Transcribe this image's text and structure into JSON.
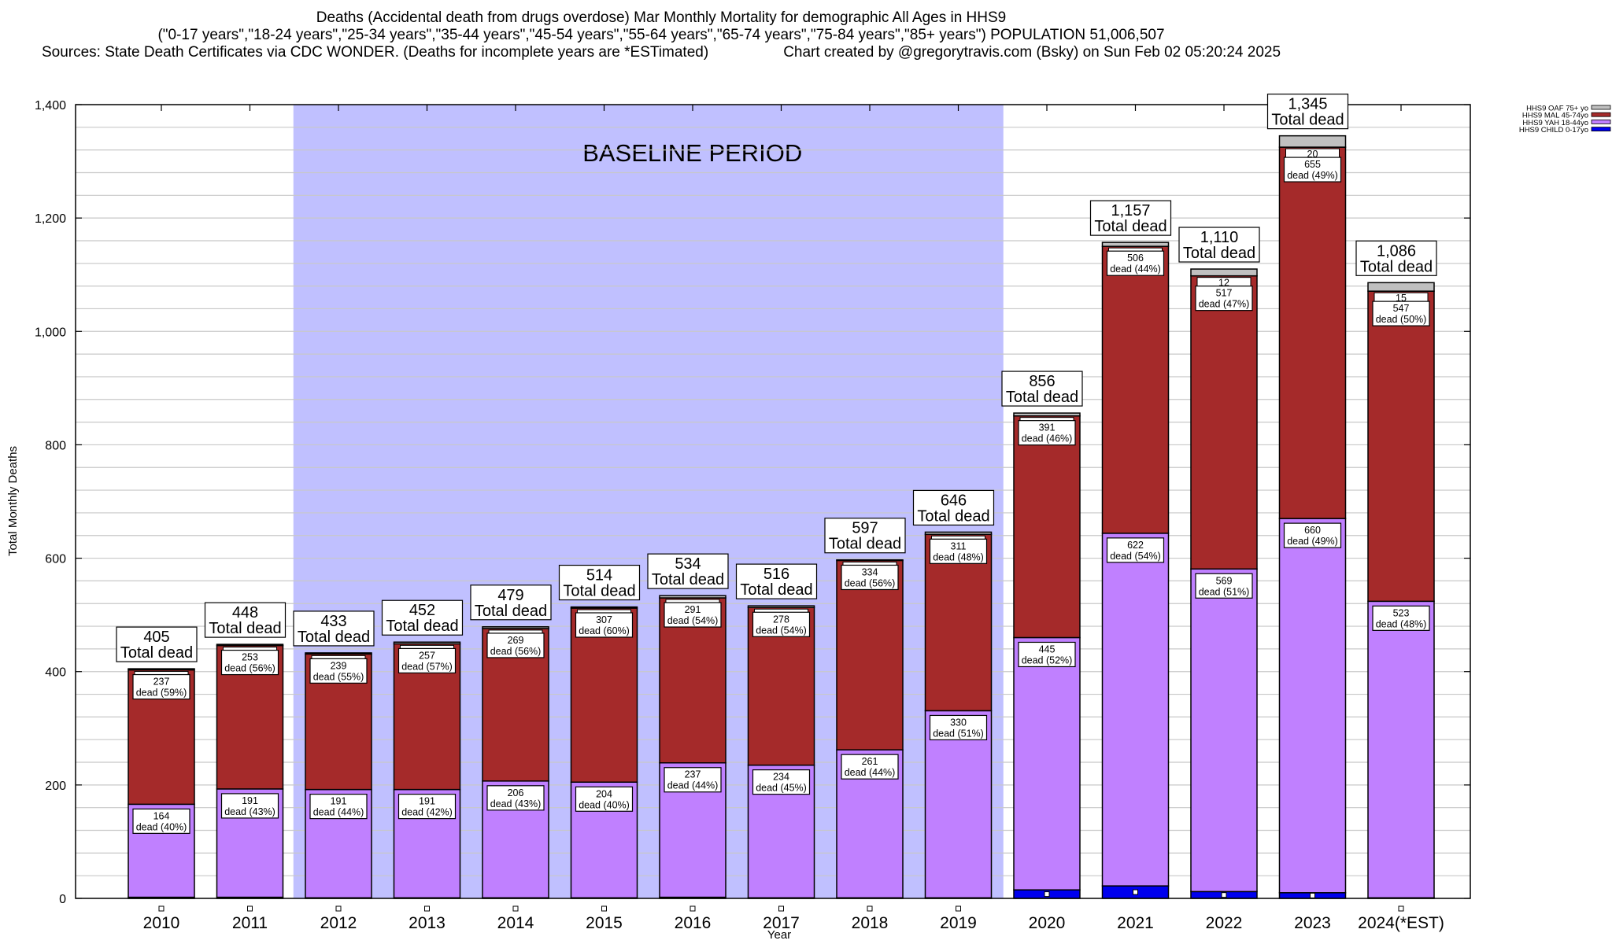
{
  "chart_data": {
    "type": "bar",
    "stacked": true,
    "title": "Deaths (Accidental death from drugs overdose) Mar Monthly Mortality for demographic All Ages in HHS9",
    "subtitle": "(\"0-17 years\",\"18-24 years\",\"25-34 years\",\"35-44 years\",\"45-54 years\",\"55-64 years\",\"65-74 years\",\"75-84 years\",\"85+ years\") POPULATION 51,006,507",
    "sources": "Sources: State Death Certificates via CDC WONDER. (Deaths for incomplete years are *ESTimated)",
    "credit": "Chart created by @gregorytravis.com (Bsky) on Sun Feb 02 05:20:24 2025",
    "xlabel": "Year",
    "ylabel": "Total Monthly Deaths",
    "ylim": [
      0,
      1400
    ],
    "yticks": [
      0,
      200,
      400,
      600,
      800,
      1000,
      1200,
      1400
    ],
    "ytick_labels": [
      "0",
      "200",
      "400",
      "600",
      "800",
      "1,000",
      "1,200",
      "1,400"
    ],
    "grid": true,
    "legend_position": "top-right",
    "categories": [
      "2010",
      "2011",
      "2012",
      "2013",
      "2014",
      "2015",
      "2016",
      "2017",
      "2018",
      "2019",
      "2020",
      "2021",
      "2022",
      "2023",
      "2024(*EST)"
    ],
    "series": [
      {
        "name": "HHS9 CHILD 0-17yo",
        "color": "#0000ee",
        "values": [
          2,
          2,
          1,
          1,
          1,
          1,
          2,
          1,
          1,
          1,
          15,
          22,
          12,
          10,
          1
        ]
      },
      {
        "name": "HHS9 YAH 18-44yo",
        "color": "#c080ff",
        "values": [
          164,
          191,
          191,
          191,
          206,
          204,
          237,
          234,
          261,
          330,
          445,
          622,
          569,
          660,
          523
        ]
      },
      {
        "name": "HHS9 MAL 45-74yo",
        "color": "#a52a2a",
        "values": [
          237,
          253,
          239,
          257,
          269,
          307,
          291,
          278,
          334,
          311,
          391,
          506,
          517,
          655,
          547
        ]
      },
      {
        "name": "HHS9 OAF 75+ yo",
        "color": "#c0c0c0",
        "values": [
          2,
          2,
          2,
          3,
          3,
          2,
          4,
          3,
          1,
          4,
          5,
          7,
          12,
          20,
          15
        ]
      }
    ],
    "totals": [
      405,
      448,
      433,
      452,
      479,
      514,
      534,
      516,
      597,
      646,
      856,
      1157,
      1110,
      1345,
      1086
    ],
    "total_labels": [
      "405",
      "448",
      "433",
      "452",
      "479",
      "514",
      "534",
      "516",
      "597",
      "646",
      "856",
      "1,157",
      "1,110",
      "1,345",
      "1,086"
    ],
    "total_suffix": "Total dead",
    "mal_labels": [
      "dead (59%)",
      "dead (56%)",
      "dead (55%)",
      "dead (57%)",
      "dead (56%)",
      "dead (60%)",
      "dead (54%)",
      "dead (54%)",
      "dead (56%)",
      "dead (48%)",
      "dead (46%)",
      "dead (44%)",
      "dead (47%)",
      "dead (49%)",
      "dead (50%)"
    ],
    "yah_labels": [
      "dead (40%)",
      "dead (43%)",
      "dead (44%)",
      "dead (42%)",
      "dead (43%)",
      "dead (40%)",
      "dead (44%)",
      "dead (45%)",
      "dead (44%)",
      "dead (51%)",
      "dead (52%)",
      "dead (54%)",
      "dead (51%)",
      "dead (49%)",
      "dead (48%)"
    ],
    "oaf_labels_shown": [
      "",
      "",
      "",
      "",
      "",
      "",
      "",
      "",
      "",
      "",
      "",
      "",
      "12",
      "20",
      "15"
    ],
    "annotation": {
      "text": "BASELINE PERIOD",
      "from_category": "2012",
      "to_category": "2019",
      "color": "#c0c0ff"
    }
  }
}
